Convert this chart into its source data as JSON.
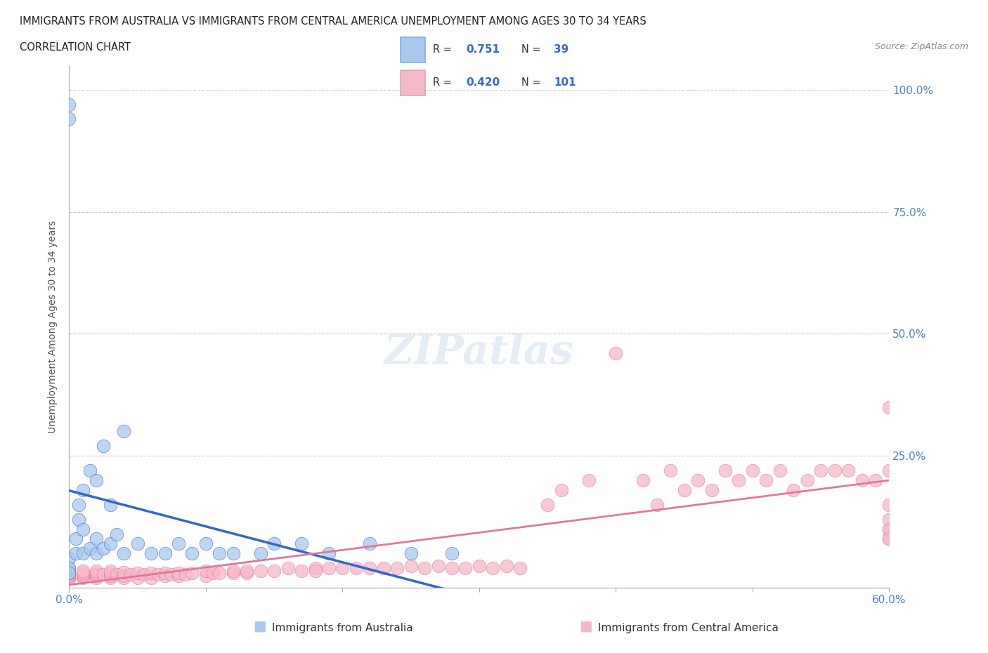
{
  "title_line1": "IMMIGRANTS FROM AUSTRALIA VS IMMIGRANTS FROM CENTRAL AMERICA UNEMPLOYMENT AMONG AGES 30 TO 34 YEARS",
  "title_line2": "CORRELATION CHART",
  "source_text": "Source: ZipAtlas.com",
  "ylabel": "Unemployment Among Ages 30 to 34 years",
  "legend_label1": "Immigrants from Australia",
  "legend_label2": "Immigrants from Central America",
  "R1": "0.751",
  "N1": "39",
  "R2": "0.420",
  "N2": "101",
  "color_australia": "#a8c8f0",
  "color_central_america": "#f5b8c8",
  "color_trendline1": "#3468c8",
  "color_trendline2": "#e07898",
  "xlim": [
    0.0,
    0.6
  ],
  "ylim": [
    -0.02,
    1.05
  ],
  "australia_x": [
    0.0,
    0.0,
    0.0,
    0.0,
    0.0,
    0.005,
    0.005,
    0.007,
    0.007,
    0.01,
    0.01,
    0.01,
    0.015,
    0.015,
    0.02,
    0.02,
    0.02,
    0.025,
    0.025,
    0.03,
    0.03,
    0.035,
    0.04,
    0.04,
    0.05,
    0.06,
    0.07,
    0.08,
    0.09,
    0.1,
    0.11,
    0.12,
    0.14,
    0.15,
    0.17,
    0.19,
    0.22,
    0.25,
    0.28
  ],
  "australia_y": [
    0.97,
    0.94,
    0.04,
    0.02,
    0.01,
    0.05,
    0.08,
    0.12,
    0.15,
    0.05,
    0.1,
    0.18,
    0.06,
    0.22,
    0.05,
    0.08,
    0.2,
    0.06,
    0.27,
    0.07,
    0.15,
    0.09,
    0.05,
    0.3,
    0.07,
    0.05,
    0.05,
    0.07,
    0.05,
    0.07,
    0.05,
    0.05,
    0.05,
    0.07,
    0.07,
    0.05,
    0.07,
    0.05,
    0.05
  ],
  "central_america_x": [
    0.0,
    0.0,
    0.0,
    0.0,
    0.0,
    0.0,
    0.0,
    0.0,
    0.0,
    0.01,
    0.01,
    0.01,
    0.01,
    0.01,
    0.02,
    0.02,
    0.02,
    0.02,
    0.02,
    0.025,
    0.03,
    0.03,
    0.03,
    0.03,
    0.035,
    0.04,
    0.04,
    0.04,
    0.045,
    0.05,
    0.05,
    0.055,
    0.06,
    0.06,
    0.065,
    0.07,
    0.07,
    0.075,
    0.08,
    0.08,
    0.085,
    0.09,
    0.1,
    0.1,
    0.105,
    0.11,
    0.12,
    0.12,
    0.13,
    0.13,
    0.14,
    0.15,
    0.16,
    0.17,
    0.18,
    0.18,
    0.19,
    0.2,
    0.21,
    0.22,
    0.23,
    0.24,
    0.25,
    0.26,
    0.27,
    0.28,
    0.29,
    0.3,
    0.31,
    0.32,
    0.33,
    0.35,
    0.36,
    0.38,
    0.4,
    0.42,
    0.43,
    0.44,
    0.45,
    0.46,
    0.47,
    0.48,
    0.49,
    0.5,
    0.51,
    0.52,
    0.53,
    0.54,
    0.55,
    0.56,
    0.57,
    0.58,
    0.59,
    0.6,
    0.6,
    0.6,
    0.6,
    0.6,
    0.6,
    0.6,
    0.6
  ],
  "central_america_y": [
    0.0,
    0.0,
    0.0,
    0.0,
    0.005,
    0.008,
    0.01,
    0.01,
    0.02,
    0.0,
    0.005,
    0.008,
    0.01,
    0.015,
    0.0,
    0.005,
    0.008,
    0.01,
    0.015,
    0.008,
    0.0,
    0.005,
    0.01,
    0.015,
    0.008,
    0.0,
    0.005,
    0.012,
    0.008,
    0.0,
    0.01,
    0.008,
    0.0,
    0.01,
    0.008,
    0.005,
    0.01,
    0.008,
    0.005,
    0.01,
    0.008,
    0.01,
    0.005,
    0.015,
    0.01,
    0.01,
    0.01,
    0.015,
    0.01,
    0.015,
    0.015,
    0.015,
    0.02,
    0.015,
    0.02,
    0.015,
    0.02,
    0.02,
    0.02,
    0.02,
    0.02,
    0.02,
    0.025,
    0.02,
    0.025,
    0.02,
    0.02,
    0.025,
    0.02,
    0.025,
    0.02,
    0.15,
    0.18,
    0.2,
    0.46,
    0.2,
    0.15,
    0.22,
    0.18,
    0.2,
    0.18,
    0.22,
    0.2,
    0.22,
    0.2,
    0.22,
    0.18,
    0.2,
    0.22,
    0.22,
    0.22,
    0.2,
    0.2,
    0.22,
    0.08,
    0.1,
    0.15,
    0.35,
    0.12,
    0.1,
    0.08
  ]
}
